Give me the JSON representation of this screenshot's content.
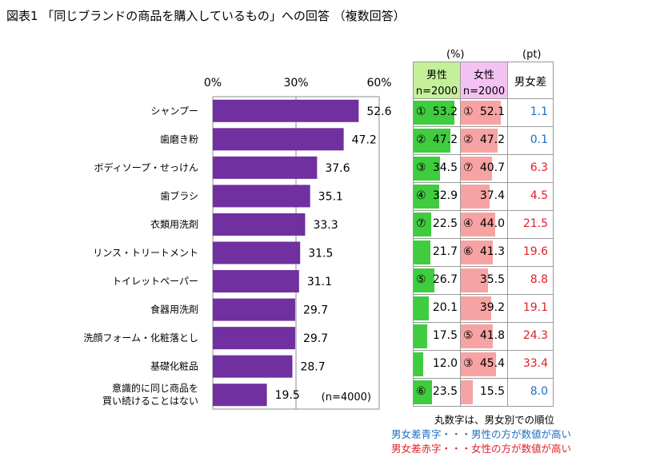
{
  "title": "図表1 「同じブランドの商品を購入しているもの」への回答 （複数回答）",
  "colors": {
    "bar": "#7030a0",
    "male_fill": "#3fcc3f",
    "female_fill": "#f7a3a3",
    "male_header": "#c4f09a",
    "female_header": "#f4c2f2",
    "blue_text": "#1f6fbf",
    "red_text": "#e0202a"
  },
  "chart_data": {
    "type": "bar",
    "orientation": "horizontal",
    "title": "",
    "categories": [
      "シャンプー",
      "歯磨き粉",
      "ボディソープ・せっけん",
      "歯ブラシ",
      "衣類用洗剤",
      "リンス・トリートメント",
      "トイレットペーパー",
      "食器用洗剤",
      "洗顔フォーム・化粧落とし",
      "基礎化粧品",
      [
        "意識的に同じ商品を",
        "買い続けることはない"
      ]
    ],
    "values": [
      52.6,
      47.2,
      37.6,
      35.1,
      33.3,
      31.5,
      31.1,
      29.7,
      29.7,
      28.7,
      19.5
    ],
    "value_labels": [
      "52.6",
      "47.2",
      "37.6",
      "35.1",
      "33.3",
      "31.5",
      "31.1",
      "29.7",
      "29.7",
      "28.7",
      "19.5"
    ],
    "xticks": [
      "0%",
      "30%",
      "60%"
    ],
    "xtick_values": [
      0,
      30,
      60
    ],
    "xlim": [
      0,
      60
    ],
    "sample_note": "(n=4000)",
    "xlabel": "",
    "ylabel": ""
  },
  "table": {
    "unit_pct": "(%)",
    "unit_pt": "(pt)",
    "male_header": "男性",
    "female_header": "女性",
    "n_label": "n=2000",
    "diff_header": "男女差",
    "fill_scale_max": 60,
    "rows": [
      {
        "mrank": "①",
        "male": 53.2,
        "male_label": "53.2",
        "frank": "①",
        "female": 52.1,
        "female_label": "52.1",
        "diff": "1.1",
        "diff_color": "blue"
      },
      {
        "mrank": "②",
        "male": 47.2,
        "male_label": "47.2",
        "frank": "②",
        "female": 47.2,
        "female_label": "47.2",
        "diff": "0.1",
        "diff_color": "blue"
      },
      {
        "mrank": "③",
        "male": 34.5,
        "male_label": "34.5",
        "frank": "⑦",
        "female": 40.7,
        "female_label": "40.7",
        "diff": "6.3",
        "diff_color": "red"
      },
      {
        "mrank": "④",
        "male": 32.9,
        "male_label": "32.9",
        "frank": "",
        "female": 37.4,
        "female_label": "37.4",
        "diff": "4.5",
        "diff_color": "red"
      },
      {
        "mrank": "⑦",
        "male": 22.5,
        "male_label": "22.5",
        "frank": "④",
        "female": 44.0,
        "female_label": "44.0",
        "diff": "21.5",
        "diff_color": "red"
      },
      {
        "mrank": "",
        "male": 21.7,
        "male_label": "21.7",
        "frank": "⑥",
        "female": 41.3,
        "female_label": "41.3",
        "diff": "19.6",
        "diff_color": "red"
      },
      {
        "mrank": "⑤",
        "male": 26.7,
        "male_label": "26.7",
        "frank": "",
        "female": 35.5,
        "female_label": "35.5",
        "diff": "8.8",
        "diff_color": "red"
      },
      {
        "mrank": "",
        "male": 20.1,
        "male_label": "20.1",
        "frank": "",
        "female": 39.2,
        "female_label": "39.2",
        "diff": "19.1",
        "diff_color": "red"
      },
      {
        "mrank": "",
        "male": 17.5,
        "male_label": "17.5",
        "frank": "⑤",
        "female": 41.8,
        "female_label": "41.8",
        "diff": "24.3",
        "diff_color": "red"
      },
      {
        "mrank": "",
        "male": 12.0,
        "male_label": "12.0",
        "frank": "③",
        "female": 45.4,
        "female_label": "45.4",
        "diff": "33.4",
        "diff_color": "red"
      },
      {
        "mrank": "⑥",
        "male": 23.5,
        "male_label": "23.5",
        "frank": "",
        "female": 15.5,
        "female_label": "15.5",
        "diff": "8.0",
        "diff_color": "blue"
      }
    ]
  },
  "notes": {
    "rank_note": "丸数字は、男女別での順位",
    "blue_note": "男女差青字・・・男性の方が数値が高い",
    "red_note": "男女差赤字・・・女性の方が数値が高い"
  }
}
